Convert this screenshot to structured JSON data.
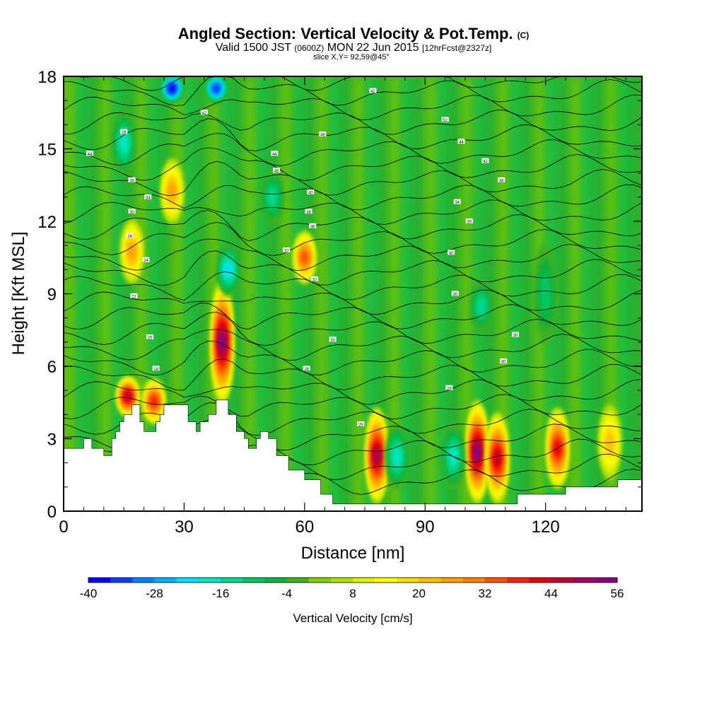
{
  "title": {
    "main": "Angled Section: Vertical Velocity & Pot.Temp.",
    "units_tag": "(C)",
    "valid_prefix": "Valid 1500 JST",
    "valid_z": "(0600Z)",
    "valid_date": "MON 22 Jun 2015",
    "valid_fcst": "[12hrFcst@2327z]",
    "slice": "slice X,Y= 92,59@45°"
  },
  "chart_data": {
    "type": "heatmap",
    "xlabel": "Distance [nm]",
    "ylabel": "Height [Kft MSL]",
    "xlim": [
      0,
      144
    ],
    "ylim": [
      0,
      18
    ],
    "x_ticks": [
      0,
      30,
      60,
      90,
      120
    ],
    "y_ticks": [
      0,
      3,
      6,
      9,
      12,
      15,
      18
    ],
    "colorbar": {
      "label": "Vertical Velocity [cm/s]",
      "tick_values": [
        -40,
        -28,
        -16,
        -4,
        8,
        20,
        32,
        44,
        56
      ],
      "bin_edges_start": -40,
      "bin_step": 4,
      "colors": [
        "#0000ff",
        "#0040ff",
        "#0080ff",
        "#00b0ff",
        "#00e0ff",
        "#00e8c0",
        "#00d890",
        "#00c860",
        "#10b040",
        "#40b020",
        "#80d000",
        "#b0e000",
        "#e0f000",
        "#ffff00",
        "#ffe000",
        "#ffc000",
        "#ffa000",
        "#ff8000",
        "#ff5000",
        "#ff2000",
        "#e00000",
        "#c00030",
        "#a00060",
        "#800080"
      ]
    },
    "terrain_kft": [
      [
        0,
        2.6
      ],
      [
        5,
        2.6
      ],
      [
        5,
        3.0
      ],
      [
        7,
        3.0
      ],
      [
        7,
        2.6
      ],
      [
        10,
        2.6
      ],
      [
        10,
        2.3
      ],
      [
        12,
        2.3
      ],
      [
        12,
        3.0
      ],
      [
        13,
        3.0
      ],
      [
        13,
        3.3
      ],
      [
        14,
        3.3
      ],
      [
        14,
        3.7
      ],
      [
        15,
        3.7
      ],
      [
        15,
        4.0
      ],
      [
        17,
        4.0
      ],
      [
        17,
        4.4
      ],
      [
        19,
        4.4
      ],
      [
        19,
        3.7
      ],
      [
        20,
        3.7
      ],
      [
        20,
        3.3
      ],
      [
        23,
        3.3
      ],
      [
        23,
        3.7
      ],
      [
        24,
        3.7
      ],
      [
        24,
        4.0
      ],
      [
        25,
        4.0
      ],
      [
        25,
        4.4
      ],
      [
        31,
        4.4
      ],
      [
        31,
        3.7
      ],
      [
        33,
        3.7
      ],
      [
        33,
        3.3
      ],
      [
        34,
        3.3
      ],
      [
        34,
        3.7
      ],
      [
        36,
        3.7
      ],
      [
        36,
        4.0
      ],
      [
        38,
        4.0
      ],
      [
        38,
        4.6
      ],
      [
        41,
        4.6
      ],
      [
        41,
        4.0
      ],
      [
        43,
        4.0
      ],
      [
        43,
        3.3
      ],
      [
        45,
        3.3
      ],
      [
        45,
        3.0
      ],
      [
        46,
        3.0
      ],
      [
        46,
        2.6
      ],
      [
        48,
        2.6
      ],
      [
        48,
        3.0
      ],
      [
        49,
        3.0
      ],
      [
        49,
        3.3
      ],
      [
        51,
        3.3
      ],
      [
        51,
        3.0
      ],
      [
        53,
        3.0
      ],
      [
        53,
        2.3
      ],
      [
        56,
        2.3
      ],
      [
        56,
        1.7
      ],
      [
        60,
        1.7
      ],
      [
        60,
        1.3
      ],
      [
        64,
        1.3
      ],
      [
        64,
        0.7
      ],
      [
        67,
        0.7
      ],
      [
        67,
        0.3
      ],
      [
        113,
        0.3
      ],
      [
        113,
        0.7
      ],
      [
        125,
        0.7
      ],
      [
        125,
        1.0
      ],
      [
        138,
        1.0
      ],
      [
        138,
        1.3
      ],
      [
        144,
        1.3
      ]
    ],
    "updrafts": [
      {
        "x": 16,
        "bottom": 4.0,
        "top": 5.5,
        "peak": 44
      },
      {
        "x": 17,
        "bottom": 9.5,
        "top": 12.0,
        "peak": 24
      },
      {
        "x": 22.5,
        "bottom": 3.7,
        "top": 5.4,
        "peak": 36
      },
      {
        "x": 27,
        "bottom": 12.0,
        "top": 14.5,
        "peak": 24
      },
      {
        "x": 39.5,
        "bottom": 4.5,
        "top": 9.5,
        "peak": 52
      },
      {
        "x": 60,
        "bottom": 9.5,
        "top": 11.5,
        "peak": 32
      },
      {
        "x": 78,
        "bottom": 0.4,
        "top": 4.2,
        "peak": 48
      },
      {
        "x": 103,
        "bottom": 0.4,
        "top": 4.5,
        "peak": 52
      },
      {
        "x": 108,
        "bottom": 0.4,
        "top": 4.0,
        "peak": 44
      },
      {
        "x": 123,
        "bottom": 1.0,
        "top": 4.2,
        "peak": 40
      },
      {
        "x": 136,
        "bottom": 1.4,
        "top": 4.3,
        "peak": 20
      }
    ],
    "downdrafts": [
      {
        "x": 27,
        "bottom": 17.0,
        "top": 18.0,
        "peak": -40
      },
      {
        "x": 38,
        "bottom": 17.0,
        "top": 18.0,
        "peak": -36
      },
      {
        "x": 15,
        "bottom": 14.0,
        "top": 16.5,
        "peak": -20
      },
      {
        "x": 41,
        "bottom": 9.0,
        "top": 11.0,
        "peak": -24
      },
      {
        "x": 104,
        "bottom": 7.5,
        "top": 9.5,
        "peak": -16
      },
      {
        "x": 83,
        "bottom": 1.0,
        "top": 3.5,
        "peak": -20
      },
      {
        "x": 97,
        "bottom": 1.0,
        "top": 3.5,
        "peak": -20
      },
      {
        "x": 120,
        "bottom": 7.0,
        "top": 11.0,
        "peak": -12
      },
      {
        "x": 52,
        "bottom": 12.0,
        "top": 14.0,
        "peak": -16
      }
    ],
    "contour_labels": [
      {
        "x": 6.5,
        "y": 14.8,
        "text": "44"
      },
      {
        "x": 15,
        "y": 15.7,
        "text": "26"
      },
      {
        "x": 17,
        "y": 13.7,
        "text": "38"
      },
      {
        "x": 21,
        "y": 13.0,
        "text": "34"
      },
      {
        "x": 17,
        "y": 12.4,
        "text": "30"
      },
      {
        "x": 16.5,
        "y": 11.4,
        "text": "26"
      },
      {
        "x": 20.5,
        "y": 10.4,
        "text": "24"
      },
      {
        "x": 17.5,
        "y": 8.9,
        "text": "22"
      },
      {
        "x": 21.5,
        "y": 7.2,
        "text": "20"
      },
      {
        "x": 23,
        "y": 5.9,
        "text": "18"
      },
      {
        "x": 35,
        "y": 16.5,
        "text": "42"
      },
      {
        "x": 52.5,
        "y": 14.8,
        "text": "44"
      },
      {
        "x": 53,
        "y": 14.1,
        "text": "45"
      },
      {
        "x": 61.5,
        "y": 13.2,
        "text": "40"
      },
      {
        "x": 61,
        "y": 12.4,
        "text": "38"
      },
      {
        "x": 62,
        "y": 11.8,
        "text": "36"
      },
      {
        "x": 55.5,
        "y": 10.8,
        "text": "32"
      },
      {
        "x": 62.5,
        "y": 9.6,
        "text": "32"
      },
      {
        "x": 67,
        "y": 7.1,
        "text": "30"
      },
      {
        "x": 60.5,
        "y": 5.9,
        "text": "28"
      },
      {
        "x": 74,
        "y": 3.6,
        "text": "26"
      },
      {
        "x": 64.5,
        "y": 15.6,
        "text": "48"
      },
      {
        "x": 77,
        "y": 17.4,
        "text": "42"
      },
      {
        "x": 95,
        "y": 16.2,
        "text": "52"
      },
      {
        "x": 99,
        "y": 15.3,
        "text": "44"
      },
      {
        "x": 105,
        "y": 14.5,
        "text": "42"
      },
      {
        "x": 109,
        "y": 13.7,
        "text": "38"
      },
      {
        "x": 98,
        "y": 12.8,
        "text": "34"
      },
      {
        "x": 101,
        "y": 12.0,
        "text": "30"
      },
      {
        "x": 96.5,
        "y": 10.7,
        "text": "30"
      },
      {
        "x": 97.5,
        "y": 9.0,
        "text": "30"
      },
      {
        "x": 112.5,
        "y": 7.3,
        "text": "30"
      },
      {
        "x": 109.5,
        "y": 6.2,
        "text": "30"
      },
      {
        "x": 96,
        "y": 5.1,
        "text": "28"
      }
    ]
  }
}
